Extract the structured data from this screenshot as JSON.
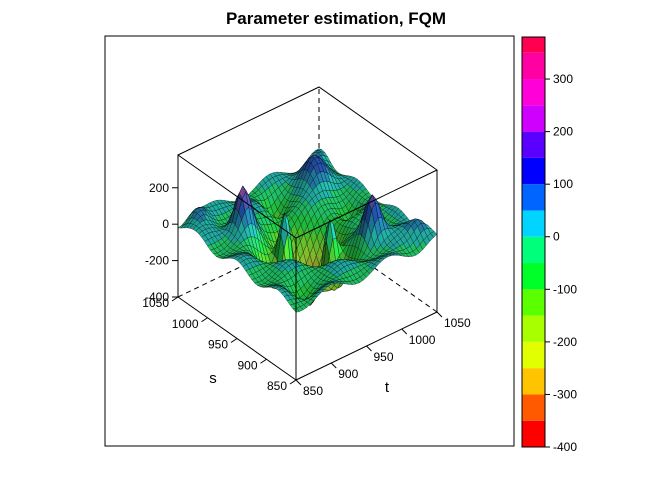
{
  "chart_data": {
    "type": "surface3d",
    "title": "Parameter estimation, FQM",
    "axes": {
      "s": {
        "label": "s",
        "range": [
          850,
          1050
        ],
        "ticks": [
          850,
          900,
          950,
          1000,
          1050
        ]
      },
      "t": {
        "label": "t",
        "range": [
          850,
          1050
        ],
        "ticks": [
          850,
          900,
          950,
          1000,
          1050
        ]
      },
      "z": {
        "range": [
          -400,
          380
        ],
        "ticks": [
          -400,
          -200,
          0,
          200
        ]
      }
    },
    "grid": false,
    "legend": "colorbar-right",
    "colorbar": {
      "ticks": [
        300,
        200,
        100,
        0,
        -100,
        -200,
        -300,
        -400
      ],
      "bins": [
        {
          "from": -400,
          "to": -350,
          "color": "#ff0000"
        },
        {
          "from": -350,
          "to": -300,
          "color": "#ff5a00"
        },
        {
          "from": -300,
          "to": -250,
          "color": "#ffc400"
        },
        {
          "from": -250,
          "to": -200,
          "color": "#e1ff00"
        },
        {
          "from": -200,
          "to": -150,
          "color": "#a8ff00"
        },
        {
          "from": -150,
          "to": -100,
          "color": "#5aff00"
        },
        {
          "from": -100,
          "to": -50,
          "color": "#00ff28"
        },
        {
          "from": -50,
          "to": 0,
          "color": "#00ff7a"
        },
        {
          "from": 0,
          "to": 50,
          "color": "#00d4ff"
        },
        {
          "from": 50,
          "to": 100,
          "color": "#0064ff"
        },
        {
          "from": 100,
          "to": 150,
          "color": "#0000ff"
        },
        {
          "from": 150,
          "to": 200,
          "color": "#5a00ff"
        },
        {
          "from": 200,
          "to": 250,
          "color": "#d000ff"
        },
        {
          "from": 250,
          "to": 300,
          "color": "#ff00d8"
        },
        {
          "from": 300,
          "to": 350,
          "color": "#ff00a2"
        },
        {
          "from": 350,
          "to": 380,
          "color": "#ff0050"
        }
      ]
    },
    "surface": {
      "grid_n": 41,
      "base_value": 0,
      "features": [
        {
          "s": 950,
          "t": 950,
          "amplitude": -430,
          "width": 24
        },
        {
          "s": 965,
          "t": 932,
          "amplitude": 380,
          "width": 7
        },
        {
          "s": 932,
          "t": 965,
          "amplitude": 360,
          "width": 7
        },
        {
          "s": 1000,
          "t": 900,
          "amplitude": 230,
          "width": 9
        },
        {
          "s": 900,
          "t": 1000,
          "amplitude": 230,
          "width": 9
        },
        {
          "s": 960,
          "t": 905,
          "amplitude": -150,
          "width": 12
        },
        {
          "s": 905,
          "t": 960,
          "amplitude": -150,
          "width": 12
        },
        {
          "s": 1010,
          "t": 1010,
          "amplitude": 140,
          "width": 14
        },
        {
          "s": 1020,
          "t": 960,
          "amplitude": -120,
          "width": 10
        },
        {
          "s": 960,
          "t": 1020,
          "amplitude": -120,
          "width": 10
        },
        {
          "s": 880,
          "t": 880,
          "amplitude": -90,
          "width": 12
        },
        {
          "s": 1040,
          "t": 1040,
          "amplitude": 60,
          "width": 10
        },
        {
          "s": 1040,
          "t": 870,
          "amplitude": 80,
          "width": 10
        },
        {
          "s": 870,
          "t": 1040,
          "amplitude": 80,
          "width": 10
        }
      ],
      "ripple_amplitude": 35
    },
    "colors": {
      "mesh_line": "#000000",
      "surface_base": "#3a8a52"
    }
  }
}
